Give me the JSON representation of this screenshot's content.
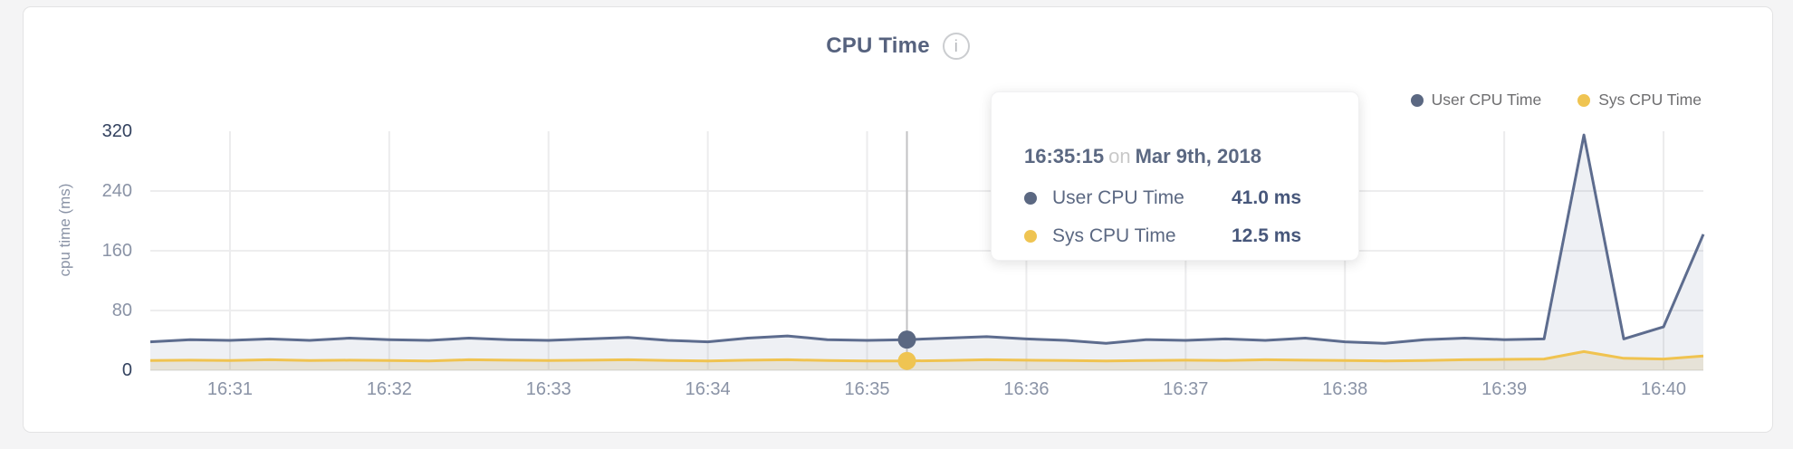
{
  "card": {
    "title": "CPU Time",
    "info_glyph": "i"
  },
  "legend": {
    "items": [
      {
        "label": "User CPU Time",
        "color": "#5b6882"
      },
      {
        "label": "Sys CPU Time",
        "color": "#efc452"
      }
    ]
  },
  "y_axis": {
    "title": "cpu time (ms)",
    "ticks": [
      "320",
      "240",
      "160",
      "80",
      "0"
    ]
  },
  "x_axis": {
    "ticks": [
      "16:31",
      "16:32",
      "16:33",
      "16:34",
      "16:35",
      "16:36",
      "16:37",
      "16:38",
      "16:39",
      "16:40"
    ]
  },
  "tooltip": {
    "time": "16:35:15",
    "conjunction": "on",
    "date": "Mar 9th, 2018",
    "rows": [
      {
        "label": "User CPU Time",
        "value": "41.0 ms",
        "color": "#5b6882"
      },
      {
        "label": "Sys CPU Time",
        "value": "12.5 ms",
        "color": "#efc452"
      }
    ]
  },
  "chart_data": {
    "type": "area",
    "title": "CPU Time",
    "ylabel": "cpu time (ms)",
    "ylim": [
      0,
      320
    ],
    "y_ticks": [
      0,
      80,
      160,
      240,
      320
    ],
    "x_tick_labels": [
      "16:31",
      "16:32",
      "16:33",
      "16:34",
      "16:35",
      "16:36",
      "16:37",
      "16:38",
      "16:39",
      "16:40"
    ],
    "legend_position": "top-right",
    "grid": true,
    "x": [
      "16:30:30",
      "16:30:45",
      "16:31:00",
      "16:31:15",
      "16:31:30",
      "16:31:45",
      "16:32:00",
      "16:32:15",
      "16:32:30",
      "16:32:45",
      "16:33:00",
      "16:33:15",
      "16:33:30",
      "16:33:45",
      "16:34:00",
      "16:34:15",
      "16:34:30",
      "16:34:45",
      "16:35:00",
      "16:35:15",
      "16:35:30",
      "16:35:45",
      "16:36:00",
      "16:36:15",
      "16:36:30",
      "16:36:45",
      "16:37:00",
      "16:37:15",
      "16:37:30",
      "16:37:45",
      "16:38:00",
      "16:38:15",
      "16:38:30",
      "16:38:45",
      "16:39:00",
      "16:39:15",
      "16:39:30",
      "16:39:45",
      "16:40:00",
      "16:40:15"
    ],
    "series": [
      {
        "name": "User CPU Time",
        "line_color": "#5d6c8e",
        "fill_color": "rgba(90,110,150,0.10)",
        "values": [
          38,
          41,
          40,
          42,
          40,
          43,
          41,
          40,
          43,
          41,
          40,
          42,
          44,
          40,
          38,
          43,
          46,
          41,
          40,
          41,
          43,
          45,
          42,
          40,
          36,
          41,
          40,
          42,
          40,
          43,
          38,
          36,
          41,
          43,
          41,
          42,
          315,
          42,
          58,
          182
        ]
      },
      {
        "name": "Sys CPU Time",
        "line_color": "#f0c350",
        "fill_color": "rgba(205,178,112,0.22)",
        "values": [
          13,
          13.5,
          13,
          14,
          13,
          13.5,
          13,
          12.5,
          14,
          13.5,
          13,
          13.5,
          14,
          13,
          12.5,
          13.5,
          14,
          13,
          12.5,
          12.5,
          13,
          14,
          13.5,
          13,
          12.5,
          13,
          13.5,
          13,
          14,
          13.5,
          13,
          12.5,
          13,
          14,
          14.5,
          15,
          25,
          16,
          15,
          19
        ]
      }
    ],
    "hover_index": 19,
    "hover_readout": {
      "time": "16:35:15",
      "user_ms": 41.0,
      "sys_ms": 12.5
    }
  }
}
